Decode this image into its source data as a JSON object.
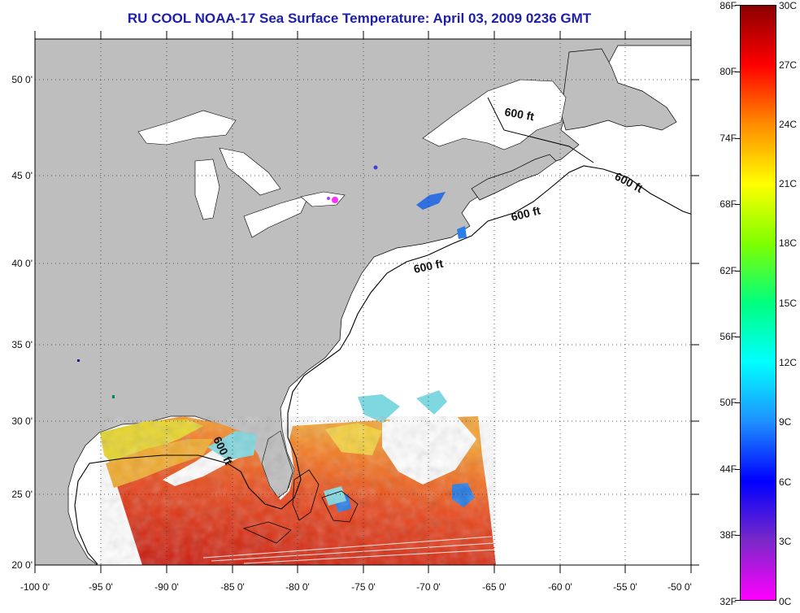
{
  "title": "RU COOL  NOAA-17  Sea Surface Temperature:  April 03, 2009 0236 GMT",
  "map": {
    "lat_labels": [
      "50 0'",
      "45 0'",
      "40 0'",
      "35 0'",
      "30 0'",
      "25 0'",
      "20 0'"
    ],
    "lon_labels": [
      "-100 0'",
      "-95 0'",
      "-90 0'",
      "-85 0'",
      "-80 0'",
      "-75 0'",
      "-70 0'",
      "-65 0'",
      "-60 0'",
      "-55 0'",
      "-50 0'"
    ],
    "isobath_labels": [
      "600 ft",
      "600 ft",
      "600 ft",
      "600 ft",
      "600 ft"
    ],
    "colors": {
      "land": "#bebebe",
      "no_data": "#ffffff",
      "border": "#000000"
    }
  },
  "colorbar": {
    "fahrenheit": [
      "86F",
      "80F",
      "74F",
      "68F",
      "62F",
      "56F",
      "50F",
      "44F",
      "38F",
      "32F"
    ],
    "celsius": [
      "30C",
      "27C",
      "24C",
      "21C",
      "18C",
      "15C",
      "12C",
      "9C",
      "6C",
      "3C",
      "0C"
    ],
    "gradient": [
      "#8b0000",
      "#ff0000",
      "#ff8c00",
      "#ffff00",
      "#7fff00",
      "#00ff7f",
      "#00ffff",
      "#1e90ff",
      "#0000ff",
      "#7a28c8",
      "#ff00ff"
    ]
  }
}
